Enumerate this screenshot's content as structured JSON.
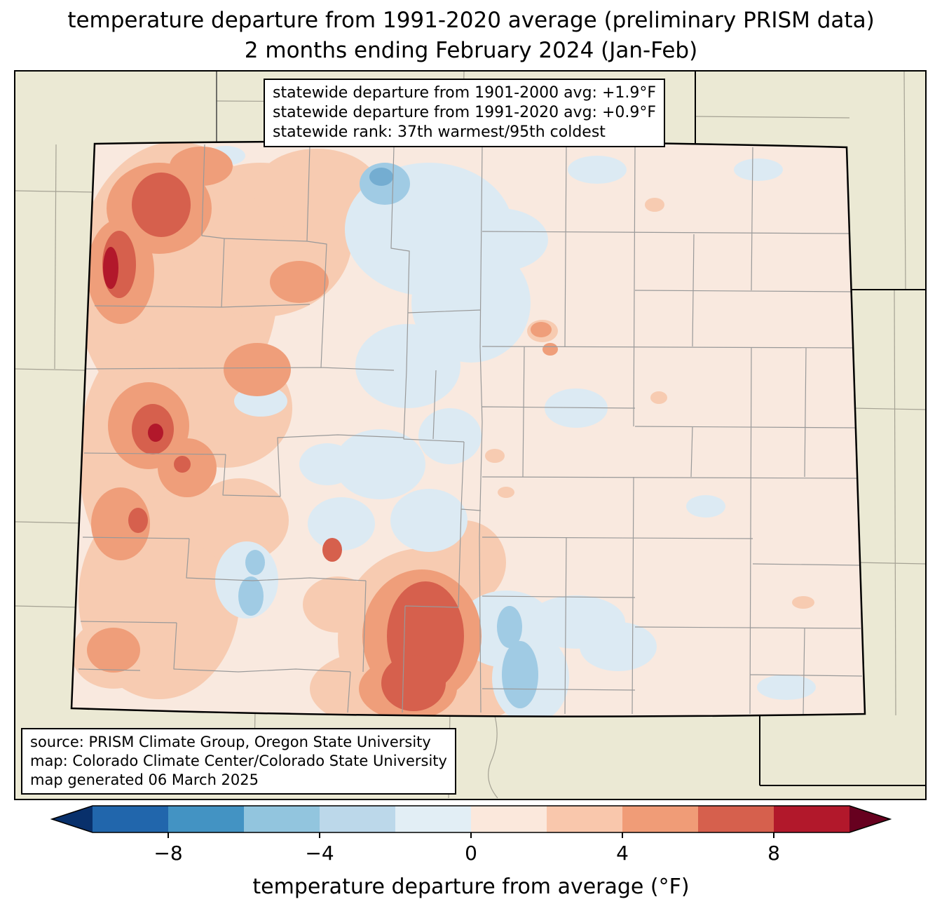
{
  "title": {
    "line1": "temperature departure from 1991-2020 average (preliminary PRISM data)",
    "line2": "2 months ending February 2024 (Jan-Feb)"
  },
  "stats_box": {
    "line1": "statewide departure from 1901-2000 avg: +1.9°F",
    "line2": "statewide departure from 1991-2020 avg: +0.9°F",
    "line3": "statewide rank: 37th warmest/95th coldest"
  },
  "source_box": {
    "line1": "source: PRISM Climate Group, Oregon State University",
    "line2": "map: Colorado Climate Center/Colorado State University",
    "line3": "map generated 06 March 2025"
  },
  "colorbar": {
    "label": "temperature departure from average (°F)",
    "ticks": [
      "−8",
      "−4",
      "0",
      "4",
      "8"
    ],
    "tick_values": [
      -8,
      -4,
      0,
      4,
      8
    ],
    "range": [
      -10,
      10
    ],
    "segment_colors": [
      "#2166ac",
      "#4393c3",
      "#92c5de",
      "#bcd8ea",
      "#e2eef5",
      "#fbe8dc",
      "#f9c7ac",
      "#f09c77",
      "#d6604d",
      "#b2182b"
    ],
    "arrow_left_color": "#08306b",
    "arrow_right_color": "#67001f"
  },
  "map": {
    "palette": {
      "outside_background": "#ebe9d4",
      "base_fill": "#f9e9df",
      "cool_pale": "#dceaf3",
      "cool_medium": "#a0cbe4",
      "cool_strong": "#74add1",
      "warm_pale": "#f7cbb1",
      "warm_medium": "#ef9e7a",
      "warm_strong": "#d6604d",
      "warm_dark": "#b2182b",
      "county_line": "#999999",
      "state_border": "#000000"
    }
  }
}
